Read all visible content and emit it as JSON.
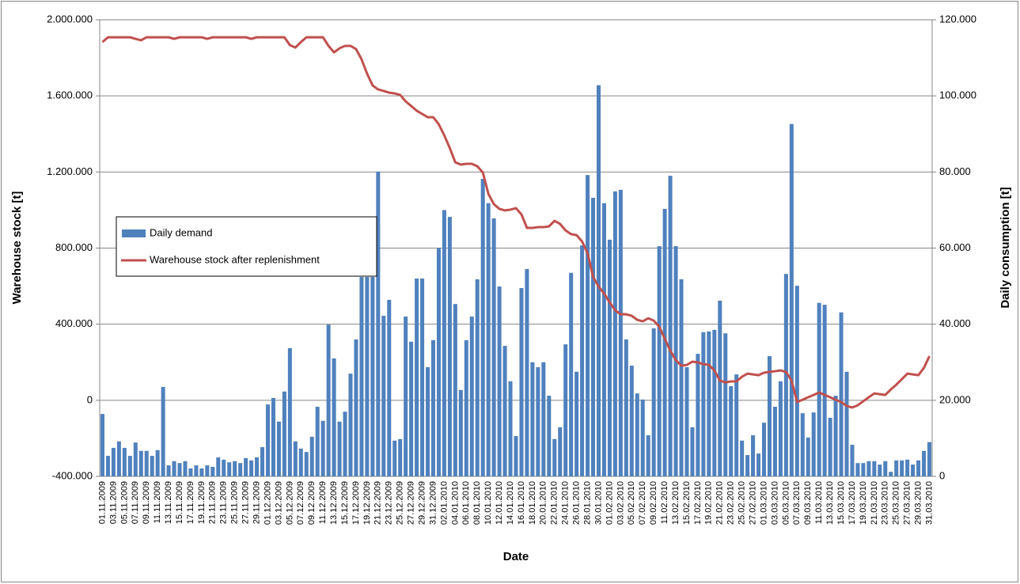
{
  "chart_data": {
    "type": "bar",
    "x_label": "Date",
    "y_label": "Warehouse stock [t]",
    "y2_label": "Daily consumption [t]",
    "grid": true,
    "legend": "center-left",
    "categories": [
      "01.11.2009",
      null,
      "03.11.2009",
      null,
      "05.11.2009",
      null,
      "07.11.2009",
      null,
      "09.11.2009",
      null,
      "11.11.2009",
      null,
      "13.11.2009",
      null,
      "15.11.2009",
      null,
      "17.11.2009",
      null,
      "19.11.2009",
      null,
      "21.11.2009",
      null,
      "23.11.2009",
      null,
      "25.11.2009",
      null,
      "27.11.2009",
      null,
      "29.11.2009",
      null,
      "01.12.2009",
      null,
      "03.12.2009",
      null,
      "05.12.2009",
      null,
      "07.12.2009",
      null,
      "09.12.2009",
      null,
      "11.12.2009",
      null,
      "13.12.2009",
      null,
      "15.12.2009",
      null,
      "17.12.2009",
      null,
      "19.12.2009",
      null,
      "21.12.2009",
      null,
      "23.12.2009",
      null,
      "25.12.2009",
      null,
      "27.12.2009",
      null,
      "29.12.2009",
      null,
      "31.12.2009",
      null,
      "02.01.2010",
      null,
      "04.01.2010",
      null,
      "06.01.2010",
      null,
      "08.01.2010",
      null,
      "10.01.2010",
      null,
      "12.01.2010",
      null,
      "14.01.2010",
      null,
      "16.01.2010",
      null,
      "18.01.2010",
      null,
      "20.01.2010",
      null,
      "22.01.2010",
      null,
      "24.01.2010",
      null,
      "26.01.2010",
      null,
      "28.01.2010",
      null,
      "30.01.2010",
      null,
      "01.02.2010",
      null,
      "03.02.2010",
      null,
      "05.02.2010",
      null,
      "07.02.2010",
      null,
      "09.02.2010",
      null,
      "11.02.2010",
      null,
      "13.02.2010",
      null,
      "15.02.2010",
      null,
      "17.02.2010",
      null,
      "19.02.2010",
      null,
      "21.02.2010",
      null,
      "23.02.2010",
      null,
      "25.02.2010",
      null,
      "27.02.2010",
      null,
      "01.03.2010",
      null,
      "03.03.2010",
      null,
      "05.03.2010",
      null,
      "07.03.2010",
      null,
      "09.03.2010",
      null,
      "11.03.2010",
      null,
      "13.03.2010",
      null,
      "15.03.2010",
      null,
      "17.03.2010",
      null,
      "19.03.2010",
      null,
      "21.03.2010",
      null,
      "23.03.2010",
      null,
      "25.03.2010",
      null,
      "27.03.2010",
      null,
      "29.03.2010",
      null,
      "31.03.2010"
    ],
    "ylim": [
      -400000,
      2000000
    ],
    "yticks": [
      {
        "value": -400000,
        "label": "-400.000"
      },
      0,
      {
        "value": 400000,
        "label": "400.000"
      },
      {
        "value": 800000,
        "label": "800.000"
      },
      {
        "value": 1200000,
        "label": "1.200.000"
      },
      {
        "value": 1600000,
        "label": "1.600.000"
      },
      {
        "value": 2000000,
        "label": "2.000.000"
      }
    ],
    "y2lim": [
      0,
      120000
    ],
    "y2ticks": [
      0,
      {
        "value": 20000,
        "label": "20.000"
      },
      {
        "value": 40000,
        "label": "40.000"
      },
      {
        "value": 60000,
        "label": "60.000"
      },
      {
        "value": 80000,
        "label": "80.000"
      },
      {
        "value": 100000,
        "label": "100.000"
      },
      {
        "value": 120000,
        "label": "120.000"
      }
    ],
    "series": [
      {
        "name": "Daily demand",
        "type": "bar",
        "axis": "y2",
        "color": "#4f81bd",
        "values": [
          16400,
          5400,
          7500,
          9200,
          7500,
          5400,
          8900,
          6700,
          6700,
          5400,
          6900,
          23500,
          2900,
          4000,
          3500,
          4000,
          2100,
          2900,
          2100,
          2900,
          2500,
          5000,
          4400,
          3700,
          4000,
          3500,
          4800,
          4200,
          5000,
          7700,
          18900,
          20600,
          14400,
          22300,
          33700,
          9200,
          7300,
          6400,
          10400,
          18300,
          14600,
          39900,
          31000,
          14400,
          17000,
          27000,
          36000,
          52400,
          52400,
          52400,
          80100,
          42200,
          46400,
          9400,
          9800,
          42000,
          35400,
          52000,
          52000,
          28700,
          35800,
          60000,
          70000,
          68200,
          45300,
          22700,
          35800,
          42000,
          51800,
          78200,
          71800,
          67800,
          49900,
          34300,
          25000,
          10600,
          49500,
          54500,
          30000,
          28700,
          30000,
          21200,
          9800,
          12900,
          34700,
          53500,
          27500,
          60700,
          79200,
          73200,
          102800,
          71800,
          62200,
          74900,
          75300,
          36000,
          29100,
          21800,
          20200,
          10800,
          38900,
          60500,
          70300,
          79000,
          60500,
          51800,
          28700,
          12900,
          32200,
          37900,
          38100,
          38500,
          46200,
          37600,
          23700,
          26800,
          9400,
          5600,
          10800,
          6000,
          14100,
          31600,
          18300,
          25000,
          53200,
          92600,
          50100,
          16600,
          10200,
          16800,
          45600,
          45100,
          15400,
          21200,
          43100,
          27500,
          8300,
          3500,
          3500,
          4000,
          4000,
          3100,
          4000,
          1200,
          4200,
          4200,
          4400,
          3100,
          4200,
          6700,
          9000
        ]
      },
      {
        "name": "Warehouse stock after replenishment",
        "type": "line",
        "axis": "y",
        "color": "#c0504d",
        "values": [
          1883000,
          1908000,
          1908000,
          1908000,
          1908000,
          1908000,
          1900000,
          1892000,
          1908000,
          1908000,
          1908000,
          1908000,
          1908000,
          1900000,
          1908000,
          1908000,
          1908000,
          1908000,
          1908000,
          1900000,
          1908000,
          1908000,
          1908000,
          1908000,
          1908000,
          1908000,
          1908000,
          1900000,
          1908000,
          1908000,
          1908000,
          1908000,
          1908000,
          1908000,
          1867000,
          1854000,
          1883000,
          1908000,
          1908000,
          1908000,
          1908000,
          1863000,
          1829000,
          1850000,
          1863000,
          1863000,
          1846000,
          1792000,
          1717000,
          1655000,
          1634000,
          1626000,
          1617000,
          1613000,
          1605000,
          1571000,
          1547000,
          1522000,
          1505000,
          1488000,
          1488000,
          1451000,
          1393000,
          1326000,
          1251000,
          1239000,
          1243000,
          1243000,
          1230000,
          1197000,
          1085000,
          1031000,
          1006000,
          998000,
          1002000,
          1010000,
          977000,
          906000,
          906000,
          910000,
          910000,
          914000,
          943000,
          927000,
          893000,
          873000,
          868000,
          835000,
          773000,
          648000,
          598000,
          561000,
          515000,
          473000,
          452000,
          452000,
          444000,
          423000,
          415000,
          431000,
          419000,
          386000,
          323000,
          261000,
          211000,
          182000,
          186000,
          203000,
          199000,
          190000,
          186000,
          157000,
          103000,
          94000,
          99000,
          99000,
          124000,
          140000,
          136000,
          132000,
          145000,
          149000,
          153000,
          157000,
          149000,
          103000,
          -9000,
          3000,
          16000,
          28000,
          41000,
          28000,
          16000,
          3000,
          -9000,
          -30000,
          -38000,
          -26000,
          -5000,
          16000,
          36000,
          32000,
          28000,
          57000,
          82000,
          111000,
          140000,
          136000,
          132000,
          170000,
          232000
        ]
      }
    ]
  }
}
